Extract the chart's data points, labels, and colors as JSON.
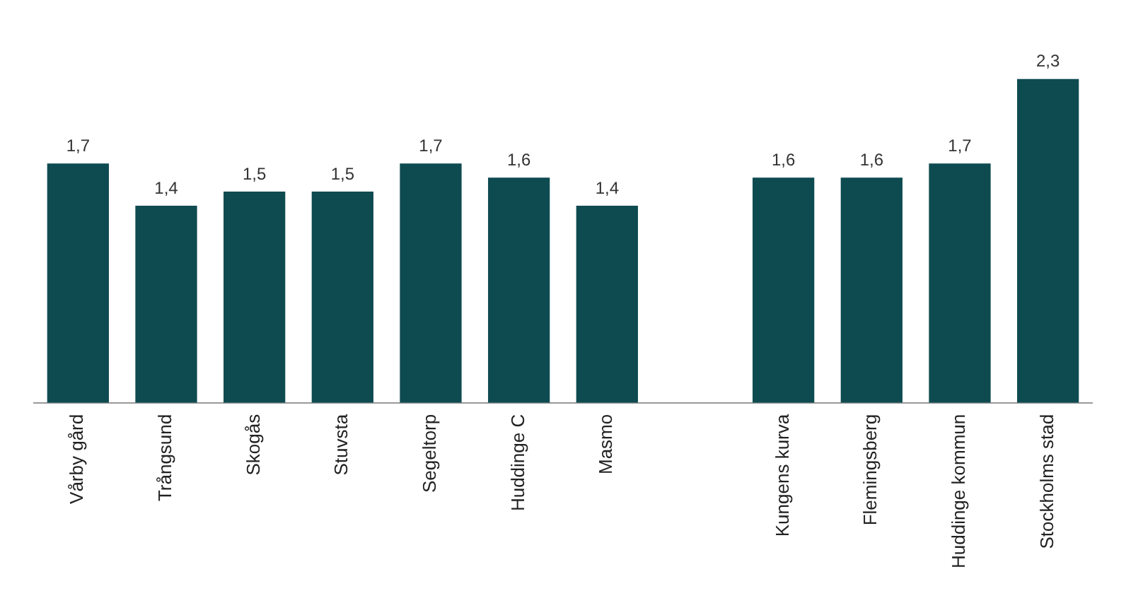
{
  "chart_data": {
    "type": "bar",
    "categories": [
      "Vårby gård",
      "Trångsund",
      "Skogås",
      "Stuvsta",
      "Segeltorp",
      "Huddinge C",
      "Masmo",
      null,
      "Kungens kurva",
      "Flemingsberg",
      "Huddinge kommun",
      "Stockholms stad"
    ],
    "values": [
      1.7,
      1.4,
      1.5,
      1.5,
      1.7,
      1.6,
      1.4,
      null,
      1.6,
      1.6,
      1.7,
      2.3
    ],
    "value_labels": [
      "1,7",
      "1,4",
      "1,5",
      "1,5",
      "1,7",
      "1,6",
      "1,4",
      null,
      "1,6",
      "1,6",
      "1,7",
      "2,3"
    ],
    "color": "#0e4b50",
    "grid": false,
    "legend": false
  }
}
